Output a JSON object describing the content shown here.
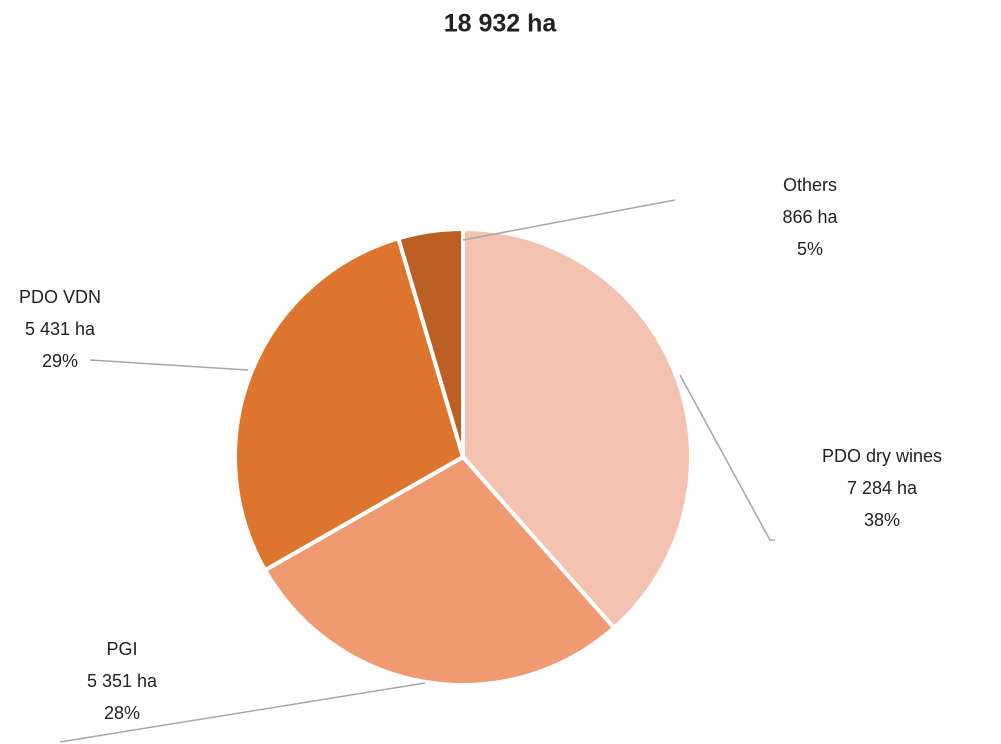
{
  "chart_data": {
    "type": "pie",
    "title": "18 932 ha",
    "categories": [
      "PDO dry wines",
      "PGI",
      "PDO VDN",
      "Others"
    ],
    "values": [
      7284,
      5351,
      5431,
      866
    ],
    "value_labels": [
      "7 284 ha",
      "5 351 ha",
      "5 431 ha",
      "866 ha"
    ],
    "percent_labels": [
      "38%",
      "28%",
      "29%",
      "5%"
    ],
    "colors": [
      "#f4c2b0",
      "#f09a72",
      "#de752e",
      "#bb5f24"
    ]
  }
}
